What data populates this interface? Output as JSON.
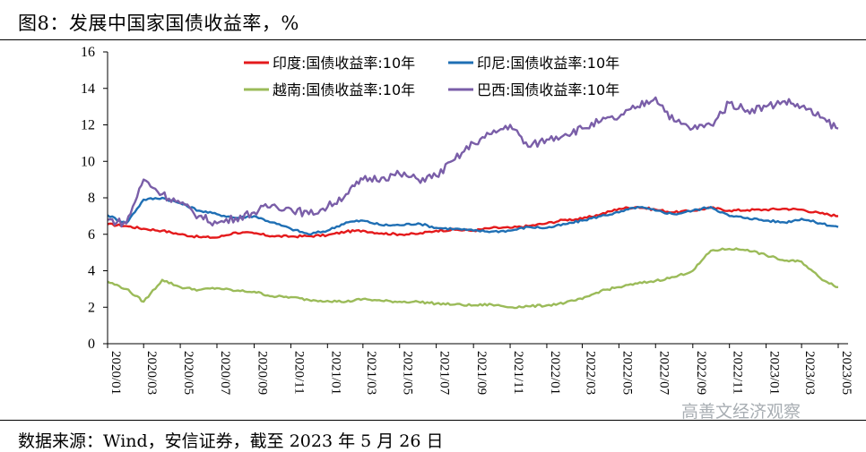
{
  "figure": {
    "title": "图8：发展中国家国债收益率，%",
    "source": "数据来源：Wind，安信证券，截至 2023 年 5 月 26 日",
    "watermark": "高善文经济观察"
  },
  "chart_data": {
    "type": "line",
    "title": "",
    "xlabel": "",
    "ylabel": "",
    "ylim": [
      0,
      16
    ],
    "xlim": [
      "2020-01",
      "2023-05"
    ],
    "y_ticks": [
      0,
      2,
      4,
      6,
      8,
      10,
      12,
      14,
      16
    ],
    "x_ticks": [
      "2020/01",
      "2020/03",
      "2020/05",
      "2020/07",
      "2020/09",
      "2020/11",
      "2021/01",
      "2021/03",
      "2021/05",
      "2021/07",
      "2021/09",
      "2021/11",
      "2022/01",
      "2022/03",
      "2022/05",
      "2022/07",
      "2022/09",
      "2022/11",
      "2023/01",
      "2023/03",
      "2023/05"
    ],
    "grid": false,
    "legend_position": "top",
    "series": [
      {
        "name": "印度:国债收益率:10年",
        "color": "#e41a1c",
        "points": [
          [
            "2020-01-01",
            6.55
          ],
          [
            "2020-02-01",
            6.45
          ],
          [
            "2020-03-01",
            6.3
          ],
          [
            "2020-04-01",
            6.2
          ],
          [
            "2020-05-01",
            6.0
          ],
          [
            "2020-06-01",
            5.85
          ],
          [
            "2020-07-01",
            5.82
          ],
          [
            "2020-08-01",
            6.1
          ],
          [
            "2020-09-01",
            6.05
          ],
          [
            "2020-10-01",
            5.9
          ],
          [
            "2020-11-01",
            5.88
          ],
          [
            "2020-12-01",
            5.9
          ],
          [
            "2021-01-01",
            5.95
          ],
          [
            "2021-02-01",
            6.15
          ],
          [
            "2021-03-01",
            6.2
          ],
          [
            "2021-04-01",
            6.05
          ],
          [
            "2021-05-01",
            6.0
          ],
          [
            "2021-06-01",
            6.02
          ],
          [
            "2021-07-01",
            6.2
          ],
          [
            "2021-08-01",
            6.25
          ],
          [
            "2021-09-01",
            6.2
          ],
          [
            "2021-10-01",
            6.35
          ],
          [
            "2021-11-01",
            6.35
          ],
          [
            "2021-12-01",
            6.45
          ],
          [
            "2022-01-01",
            6.6
          ],
          [
            "2022-02-01",
            6.8
          ],
          [
            "2022-03-01",
            6.85
          ],
          [
            "2022-04-01",
            7.1
          ],
          [
            "2022-05-01",
            7.4
          ],
          [
            "2022-06-01",
            7.5
          ],
          [
            "2022-07-01",
            7.35
          ],
          [
            "2022-08-01",
            7.2
          ],
          [
            "2022-09-01",
            7.3
          ],
          [
            "2022-10-01",
            7.45
          ],
          [
            "2022-11-01",
            7.3
          ],
          [
            "2022-12-01",
            7.33
          ],
          [
            "2023-01-01",
            7.35
          ],
          [
            "2023-02-01",
            7.4
          ],
          [
            "2023-03-01",
            7.35
          ],
          [
            "2023-04-01",
            7.15
          ],
          [
            "2023-05-01",
            7.0
          ]
        ]
      },
      {
        "name": "印尼:国债收益率:10年",
        "color": "#1f6fb4",
        "points": [
          [
            "2020-01-01",
            7.05
          ],
          [
            "2020-02-01",
            6.6
          ],
          [
            "2020-03-01",
            7.9
          ],
          [
            "2020-04-01",
            8.0
          ],
          [
            "2020-05-01",
            7.7
          ],
          [
            "2020-06-01",
            7.3
          ],
          [
            "2020-07-01",
            7.1
          ],
          [
            "2020-08-01",
            6.9
          ],
          [
            "2020-09-01",
            7.0
          ],
          [
            "2020-10-01",
            6.65
          ],
          [
            "2020-11-01",
            6.3
          ],
          [
            "2020-12-01",
            6.0
          ],
          [
            "2021-01-01",
            6.2
          ],
          [
            "2021-02-01",
            6.65
          ],
          [
            "2021-03-01",
            6.75
          ],
          [
            "2021-04-01",
            6.5
          ],
          [
            "2021-05-01",
            6.5
          ],
          [
            "2021-06-01",
            6.6
          ],
          [
            "2021-07-01",
            6.35
          ],
          [
            "2021-08-01",
            6.3
          ],
          [
            "2021-09-01",
            6.2
          ],
          [
            "2021-10-01",
            6.15
          ],
          [
            "2021-11-01",
            6.2
          ],
          [
            "2021-12-01",
            6.4
          ],
          [
            "2022-01-01",
            6.35
          ],
          [
            "2022-02-01",
            6.55
          ],
          [
            "2022-03-01",
            6.75
          ],
          [
            "2022-04-01",
            7.0
          ],
          [
            "2022-05-01",
            7.2
          ],
          [
            "2022-06-01",
            7.5
          ],
          [
            "2022-07-01",
            7.3
          ],
          [
            "2022-08-01",
            7.1
          ],
          [
            "2022-09-01",
            7.3
          ],
          [
            "2022-10-01",
            7.5
          ],
          [
            "2022-11-01",
            7.0
          ],
          [
            "2022-12-01",
            6.9
          ],
          [
            "2023-01-01",
            6.75
          ],
          [
            "2023-02-01",
            6.65
          ],
          [
            "2023-03-01",
            6.85
          ],
          [
            "2023-04-01",
            6.6
          ],
          [
            "2023-05-01",
            6.4
          ]
        ]
      },
      {
        "name": "越南:国债收益率:10年",
        "color": "#9bbb59",
        "points": [
          [
            "2020-01-01",
            3.4
          ],
          [
            "2020-02-01",
            3.0
          ],
          [
            "2020-03-01",
            2.3
          ],
          [
            "2020-04-01",
            3.5
          ],
          [
            "2020-05-01",
            3.1
          ],
          [
            "2020-06-01",
            2.95
          ],
          [
            "2020-07-01",
            3.05
          ],
          [
            "2020-08-01",
            2.9
          ],
          [
            "2020-09-01",
            2.85
          ],
          [
            "2020-10-01",
            2.6
          ],
          [
            "2020-11-01",
            2.55
          ],
          [
            "2020-12-01",
            2.4
          ],
          [
            "2021-01-01",
            2.35
          ],
          [
            "2021-02-01",
            2.3
          ],
          [
            "2021-03-01",
            2.45
          ],
          [
            "2021-04-01",
            2.35
          ],
          [
            "2021-05-01",
            2.3
          ],
          [
            "2021-06-01",
            2.3
          ],
          [
            "2021-07-01",
            2.2
          ],
          [
            "2021-08-01",
            2.15
          ],
          [
            "2021-09-01",
            2.1
          ],
          [
            "2021-10-01",
            2.15
          ],
          [
            "2021-11-01",
            2.0
          ],
          [
            "2021-12-01",
            2.05
          ],
          [
            "2022-01-01",
            2.1
          ],
          [
            "2022-02-01",
            2.25
          ],
          [
            "2022-03-01",
            2.45
          ],
          [
            "2022-04-01",
            2.9
          ],
          [
            "2022-05-01",
            3.1
          ],
          [
            "2022-06-01",
            3.3
          ],
          [
            "2022-07-01",
            3.45
          ],
          [
            "2022-08-01",
            3.65
          ],
          [
            "2022-09-01",
            4.0
          ],
          [
            "2022-10-01",
            5.1
          ],
          [
            "2022-11-01",
            5.2
          ],
          [
            "2022-12-01",
            5.15
          ],
          [
            "2023-01-01",
            4.85
          ],
          [
            "2023-02-01",
            4.55
          ],
          [
            "2023-03-01",
            4.5
          ],
          [
            "2023-04-01",
            3.6
          ],
          [
            "2023-05-01",
            3.1
          ]
        ]
      },
      {
        "name": "巴西:国债收益率:10年",
        "color": "#7a5ea8",
        "points": [
          [
            "2020-01-01",
            6.8
          ],
          [
            "2020-02-01",
            6.6
          ],
          [
            "2020-03-01",
            9.0
          ],
          [
            "2020-04-01",
            8.2
          ],
          [
            "2020-05-01",
            7.7
          ],
          [
            "2020-06-01",
            7.0
          ],
          [
            "2020-07-01",
            6.6
          ],
          [
            "2020-08-01",
            6.9
          ],
          [
            "2020-09-01",
            7.2
          ],
          [
            "2020-10-01",
            7.6
          ],
          [
            "2020-11-01",
            7.4
          ],
          [
            "2020-12-01",
            7.1
          ],
          [
            "2021-01-01",
            7.5
          ],
          [
            "2021-02-01",
            8.2
          ],
          [
            "2021-03-01",
            9.0
          ],
          [
            "2021-04-01",
            9.1
          ],
          [
            "2021-05-01",
            9.3
          ],
          [
            "2021-06-01",
            9.0
          ],
          [
            "2021-07-01",
            9.2
          ],
          [
            "2021-08-01",
            10.1
          ],
          [
            "2021-09-01",
            11.0
          ],
          [
            "2021-10-01",
            11.5
          ],
          [
            "2021-11-01",
            12.0
          ],
          [
            "2021-12-01",
            10.8
          ],
          [
            "2022-01-01",
            11.2
          ],
          [
            "2022-02-01",
            11.5
          ],
          [
            "2022-03-01",
            11.8
          ],
          [
            "2022-04-01",
            12.2
          ],
          [
            "2022-05-01",
            12.4
          ],
          [
            "2022-06-01",
            13.0
          ],
          [
            "2022-07-01",
            13.5
          ],
          [
            "2022-08-01",
            12.2
          ],
          [
            "2022-09-01",
            11.8
          ],
          [
            "2022-10-01",
            12.0
          ],
          [
            "2022-11-01",
            13.2
          ],
          [
            "2022-12-01",
            12.8
          ],
          [
            "2023-01-01",
            13.0
          ],
          [
            "2023-02-01",
            13.3
          ],
          [
            "2023-03-01",
            13.0
          ],
          [
            "2023-04-01",
            12.4
          ],
          [
            "2023-05-01",
            11.8
          ]
        ]
      }
    ]
  }
}
